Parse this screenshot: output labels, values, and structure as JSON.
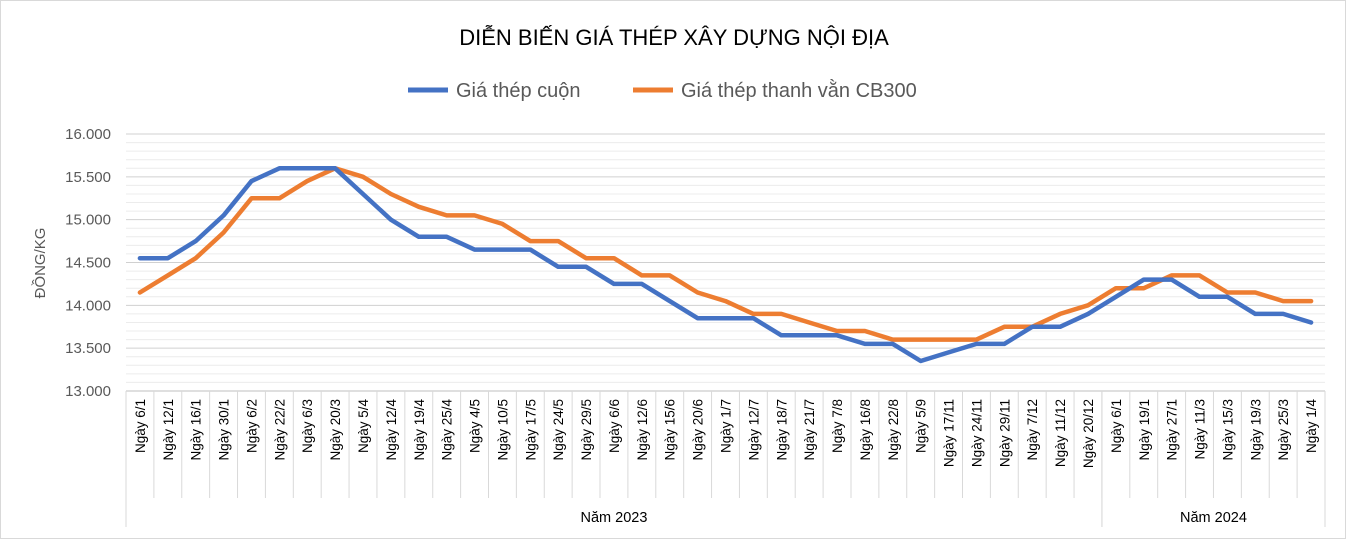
{
  "chart_data": {
    "type": "line",
    "title": "DIỄN BIẾN GIÁ THÉP XÂY DỰNG NỘI ĐỊA",
    "ylabel": "ĐỒNG/KG",
    "ylim": [
      13000,
      16000
    ],
    "yticks": [
      "13.000",
      "13.500",
      "14.000",
      "14.500",
      "15.000",
      "15.500",
      "16.000"
    ],
    "ytick_values": [
      13000,
      13500,
      14000,
      14500,
      15000,
      15500,
      16000
    ],
    "grid": true,
    "legend_position": "top",
    "categories": [
      "Ngày 6/1",
      "Ngày 12/1",
      "Ngày 16/1",
      "Ngày 30/1",
      "Ngày 6/2",
      "Ngày 22/2",
      "Ngày 6/3",
      "Ngày 20/3",
      "Ngày 5/4",
      "Ngày 12/4",
      "Ngày 19/4",
      "Ngày 25/4",
      "Ngày 4/5",
      "Ngày 10/5",
      "Ngày 17/5",
      "Ngày 24/5",
      "Ngày 29/5",
      "Ngày 6/6",
      "Ngày 12/6",
      "Ngày 15/6",
      "Ngày 20/6",
      "Ngày 1/7",
      "Ngày 12/7",
      "Ngày 18/7",
      "Ngày 21/7",
      "Ngày 7/8",
      "Ngày 16/8",
      "Ngày 22/8",
      "Ngày 5/9",
      "Ngày 17/11",
      "Ngày 24/11",
      "Ngày 29/11",
      "Ngày 7/12",
      "Ngày 11/12",
      "Ngày 20/12",
      "Ngày 6/1",
      "Ngày 19/1",
      "Ngày 27/1",
      "Ngày 11/3",
      "Ngày 15/3",
      "Ngày 19/3",
      "Ngày 25/3",
      "Ngày 1/4"
    ],
    "groups": [
      {
        "label": "Năm 2023",
        "count": 35
      },
      {
        "label": "Năm 2024",
        "count": 8
      }
    ],
    "series": [
      {
        "name": "Giá thép cuộn",
        "color": "#4472c4",
        "values": [
          14550,
          14550,
          14750,
          15050,
          15450,
          15600,
          15600,
          15600,
          15300,
          15000,
          14800,
          14800,
          14650,
          14650,
          14650,
          14450,
          14450,
          14250,
          14250,
          14050,
          13850,
          13850,
          13850,
          13650,
          13650,
          13650,
          13550,
          13550,
          13350,
          13450,
          13550,
          13550,
          13750,
          13750,
          13900,
          14100,
          14300,
          14300,
          14100,
          14100,
          13900,
          13900,
          13800
        ]
      },
      {
        "name": "Giá thép thanh vằn CB300",
        "color": "#ed7d31",
        "values": [
          14150,
          14350,
          14550,
          14850,
          15250,
          15250,
          15450,
          15600,
          15500,
          15300,
          15150,
          15050,
          15050,
          14950,
          14750,
          14750,
          14550,
          14550,
          14350,
          14350,
          14150,
          14050,
          13900,
          13900,
          13800,
          13700,
          13700,
          13600,
          13600,
          13600,
          13600,
          13750,
          13750,
          13900,
          14000,
          14200,
          14200,
          14350,
          14350,
          14150,
          14150,
          14050,
          14050
        ]
      }
    ]
  }
}
